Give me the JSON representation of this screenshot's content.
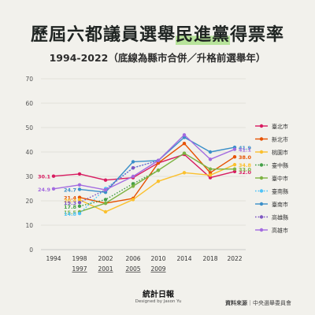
{
  "header": {
    "title_a": "歷屆六都議員選舉",
    "title_b": "民進黨",
    "title_c": "得票率",
    "subtitle": "1994-2022（底線為縣市合併／升格前選舉年）"
  },
  "footer": {
    "logo": "統計日報",
    "designer": "Designed by Jason Yu",
    "source_label": "資料來源",
    "source_sep": "｜",
    "source_value": "中央選舉委員會"
  },
  "chart_data": {
    "type": "line",
    "x_labels": [
      "1994",
      "1998",
      "2002",
      "2006",
      "2010",
      "2014",
      "2018",
      "2022"
    ],
    "x_sub_labels": [
      "",
      "1997",
      "2001",
      "2005",
      "2009",
      "",
      "",
      ""
    ],
    "yticks": [
      0,
      10,
      20,
      30,
      40,
      50,
      60,
      70
    ],
    "ylim": [
      0,
      70
    ],
    "grid": "horizontal",
    "legend": "right",
    "series": [
      {
        "name": "臺北市",
        "color": "#d81b60",
        "dash": "solid",
        "values": [
          30.1,
          31.0,
          28.5,
          29.5,
          35.5,
          39.0,
          29.5,
          32.0
        ],
        "start_label": "30.1",
        "end_label": "32.0"
      },
      {
        "name": "新北市",
        "color": "#e65100",
        "dash": "solid",
        "values": [
          null,
          21.4,
          19.0,
          21.0,
          35.5,
          43.5,
          31.5,
          38.0
        ],
        "start_label": "21.4",
        "end_label": "38.0"
      },
      {
        "name": "桃園市",
        "color": "#fbc02d",
        "dash": "solid",
        "values": [
          null,
          20.4,
          15.5,
          20.5,
          28.0,
          31.5,
          30.5,
          34.8
        ],
        "start_label": "20.4",
        "end_label": "34.8"
      },
      {
        "name": "臺中縣",
        "color": "#43a047",
        "dash": "dotted",
        "values": [
          null,
          17.8,
          20.5,
          27.0,
          32.5,
          null,
          null,
          null
        ],
        "start_label": "17.8",
        "end_label": ""
      },
      {
        "name": "臺中市",
        "color": "#7cb342",
        "dash": "solid",
        "values": [
          null,
          15.5,
          19.0,
          26.0,
          32.5,
          39.5,
          33.0,
          33.0
        ],
        "start_label": "15.5",
        "end_label": "33.0"
      },
      {
        "name": "臺南縣",
        "color": "#4fc3f7",
        "dash": "dotted",
        "values": [
          null,
          14.8,
          25.0,
          33.5,
          36.5,
          null,
          null,
          null
        ],
        "start_label": "14.8",
        "end_label": ""
      },
      {
        "name": "臺南市",
        "color": "#3a8fc9",
        "dash": "solid",
        "values": [
          null,
          24.7,
          23.5,
          36.0,
          36.5,
          46.0,
          40.0,
          41.9
        ],
        "start_label": "24.7",
        "end_label": "41.9"
      },
      {
        "name": "高雄縣",
        "color": "#7e57c2",
        "dash": "dotted",
        "values": [
          null,
          19.3,
          24.5,
          33.5,
          36.5,
          null,
          null,
          null
        ],
        "start_label": "19.3",
        "end_label": ""
      },
      {
        "name": "高雄市",
        "color": "#a36be0",
        "dash": "solid",
        "values": [
          24.9,
          26.5,
          24.5,
          30.0,
          36.5,
          47.0,
          37.0,
          41.1
        ],
        "start_label": "24.9",
        "end_label": "41.1"
      }
    ]
  }
}
